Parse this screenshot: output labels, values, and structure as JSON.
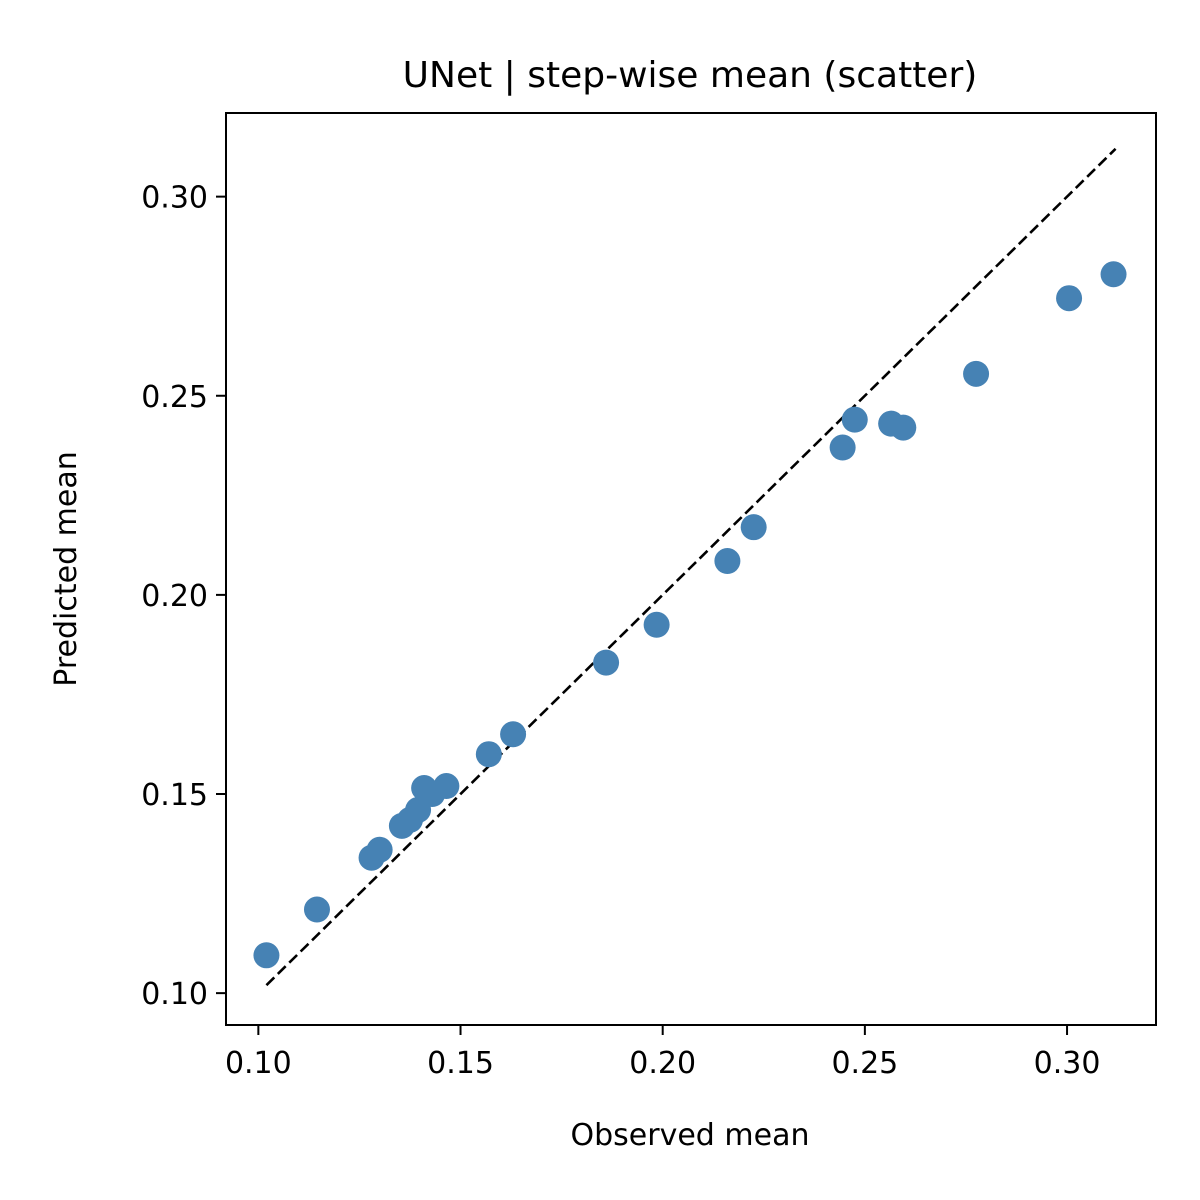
{
  "chart_data": {
    "type": "scatter",
    "title": "UNet | step-wise mean (scatter)",
    "xlabel": "Observed mean",
    "ylabel": "Predicted mean",
    "xlim": [
      0.092,
      0.322
    ],
    "ylim": [
      0.092,
      0.321
    ],
    "xticks": [
      0.1,
      0.15,
      0.2,
      0.25,
      0.3
    ],
    "yticks": [
      0.1,
      0.15,
      0.2,
      0.25,
      0.3
    ],
    "xtick_labels": [
      "0.10",
      "0.15",
      "0.20",
      "0.25",
      "0.30"
    ],
    "ytick_labels": [
      "0.10",
      "0.15",
      "0.20",
      "0.25",
      "0.30"
    ],
    "grid": false,
    "marker_color": "#4682b4",
    "reference_line": {
      "style": "dashed",
      "color": "#000000",
      "from": [
        0.102,
        0.102
      ],
      "to": [
        0.312,
        0.312
      ]
    },
    "points": [
      {
        "x": 0.102,
        "y": 0.1095
      },
      {
        "x": 0.1145,
        "y": 0.121
      },
      {
        "x": 0.128,
        "y": 0.134
      },
      {
        "x": 0.13,
        "y": 0.136
      },
      {
        "x": 0.1355,
        "y": 0.142
      },
      {
        "x": 0.1375,
        "y": 0.1435
      },
      {
        "x": 0.1395,
        "y": 0.146
      },
      {
        "x": 0.141,
        "y": 0.1515
      },
      {
        "x": 0.143,
        "y": 0.15
      },
      {
        "x": 0.1465,
        "y": 0.152
      },
      {
        "x": 0.157,
        "y": 0.16
      },
      {
        "x": 0.163,
        "y": 0.165
      },
      {
        "x": 0.186,
        "y": 0.183
      },
      {
        "x": 0.1985,
        "y": 0.1925
      },
      {
        "x": 0.216,
        "y": 0.2085
      },
      {
        "x": 0.2225,
        "y": 0.217
      },
      {
        "x": 0.2445,
        "y": 0.237
      },
      {
        "x": 0.2475,
        "y": 0.244
      },
      {
        "x": 0.2565,
        "y": 0.243
      },
      {
        "x": 0.2595,
        "y": 0.242
      },
      {
        "x": 0.2775,
        "y": 0.2555
      },
      {
        "x": 0.3005,
        "y": 0.2745
      },
      {
        "x": 0.3115,
        "y": 0.2805
      }
    ]
  }
}
